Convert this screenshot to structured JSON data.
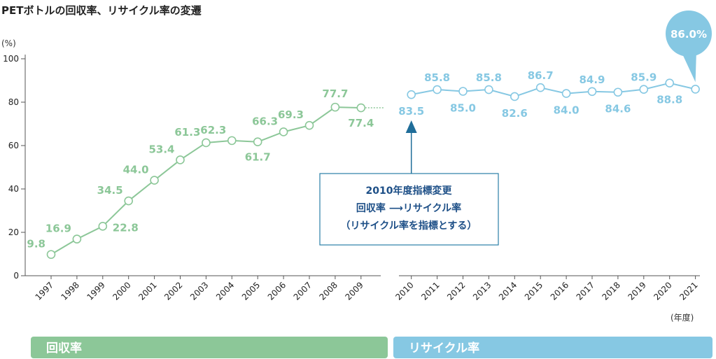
{
  "chart_data": {
    "type": "line",
    "title": "PETボトルの回収率、リサイクル率の変遷",
    "ylabel": "(%)",
    "xlabel": "(年度)",
    "ylim": [
      0,
      100
    ],
    "yticks": [
      0,
      20,
      40,
      60,
      80,
      100
    ],
    "grid": false,
    "categories": [
      "1997",
      "1998",
      "1999",
      "2000",
      "2001",
      "2002",
      "2003",
      "2004",
      "2005",
      "2006",
      "2007",
      "2008",
      "2009",
      "2010",
      "2011",
      "2012",
      "2013",
      "2014",
      "2015",
      "2016",
      "2017",
      "2018",
      "2019",
      "2020",
      "2021"
    ],
    "series": [
      {
        "name": "回収率",
        "color": "#8cc798",
        "x": [
          "1997",
          "1998",
          "1999",
          "2000",
          "2001",
          "2002",
          "2003",
          "2004",
          "2005",
          "2006",
          "2007",
          "2008",
          "2009"
        ],
        "values": [
          9.8,
          16.9,
          22.8,
          34.5,
          44.0,
          53.4,
          61.3,
          62.3,
          61.7,
          66.3,
          69.3,
          77.7,
          77.4
        ],
        "labels": [
          "9.8",
          "16.9",
          "22.8",
          "34.5",
          "44.0",
          "53.4",
          "61.3",
          "62.3",
          "61.7",
          "66.3",
          "69.3",
          "77.7",
          "77.4"
        ]
      },
      {
        "name": "リサイクル率",
        "color": "#86c8e3",
        "x": [
          "2010",
          "2011",
          "2012",
          "2013",
          "2014",
          "2015",
          "2016",
          "2017",
          "2018",
          "2019",
          "2020",
          "2021"
        ],
        "values": [
          83.5,
          85.8,
          85.0,
          85.8,
          82.6,
          86.7,
          84.0,
          84.9,
          84.6,
          85.9,
          88.8,
          86.0
        ],
        "labels": [
          "83.5",
          "85.8",
          "85.0",
          "85.8",
          "82.6",
          "86.7",
          "84.0",
          "84.9",
          "84.6",
          "85.9",
          "88.8"
        ]
      }
    ],
    "callout": {
      "text": "86.0%",
      "year": "2021",
      "color": "#86c8e3"
    },
    "annotation": {
      "year": "2010",
      "lines": [
        "2010年度指標変更",
        "回収率 ⟶リサイクル率",
        "（リサイクル率を指標とする）"
      ],
      "border_color": "#2a7fa6",
      "arrow_color": "#1f6d99"
    },
    "bands": [
      {
        "label": "回収率",
        "color": "#8cc798"
      },
      {
        "label": "リサイクル率",
        "color": "#86c8e3"
      }
    ]
  }
}
